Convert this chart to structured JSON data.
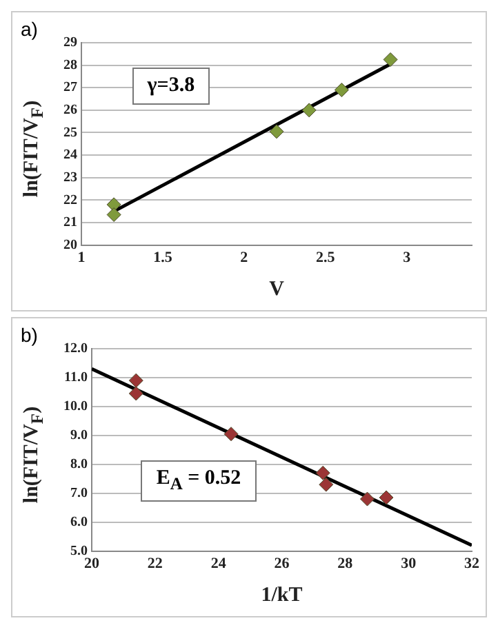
{
  "chart_data": [
    {
      "type": "scatter",
      "xlabel": "V",
      "ylabel": "ln(FIT/V$_{F}$)",
      "annotations": [
        "a)",
        "γ=3.8"
      ],
      "xlim": [
        1,
        3.4
      ],
      "xticks": [
        1,
        1.5,
        2,
        2.5,
        3
      ],
      "ylim": [
        20,
        29
      ],
      "yticks": [
        20,
        21,
        22,
        23,
        24,
        25,
        26,
        27,
        28,
        29
      ],
      "grid": "y",
      "legend": false,
      "series": [
        {
          "type": "scatter",
          "color": "#7f9a3c",
          "marker": "diamond",
          "x": [
            1.2,
            1.2,
            2.2,
            2.4,
            2.6,
            2.9
          ],
          "values": [
            21.8,
            21.35,
            25.05,
            26.0,
            26.9,
            28.25
          ]
        },
        {
          "type": "line",
          "color": "#000000",
          "marker": "none",
          "x": [
            1.2,
            2.9
          ],
          "values": [
            21.5,
            28.05
          ]
        }
      ]
    },
    {
      "type": "scatter",
      "xlabel": "1/kT",
      "ylabel": "ln(FIT/V$_{F}$)",
      "annotations": [
        "b)",
        "E$_{A}$ = 0.52"
      ],
      "xlim": [
        20,
        32
      ],
      "xticks": [
        20,
        22,
        24,
        26,
        28,
        30,
        32
      ],
      "ylim": [
        5,
        12
      ],
      "yticks": [
        {
          "value": 5,
          "label": "5.0"
        },
        {
          "value": 6,
          "label": "6.0"
        },
        {
          "value": 7,
          "label": "7.0"
        },
        {
          "value": 8,
          "label": "8.0"
        },
        {
          "value": 9,
          "label": "9.0"
        },
        {
          "value": 10,
          "label": "10.0"
        },
        {
          "value": 11,
          "label": "11.0"
        },
        {
          "value": 12,
          "label": "12.0"
        }
      ],
      "grid": "y",
      "legend": false,
      "series": [
        {
          "type": "scatter",
          "color": "#9b3535",
          "marker": "diamond",
          "x": [
            21.4,
            21.4,
            24.4,
            27.3,
            27.4,
            28.7,
            29.3
          ],
          "values": [
            10.9,
            10.45,
            9.05,
            7.7,
            7.3,
            6.8,
            6.85
          ]
        },
        {
          "type": "line",
          "color": "#000000",
          "marker": "none",
          "x": [
            20,
            32
          ],
          "values": [
            11.3,
            5.2
          ]
        }
      ]
    }
  ]
}
